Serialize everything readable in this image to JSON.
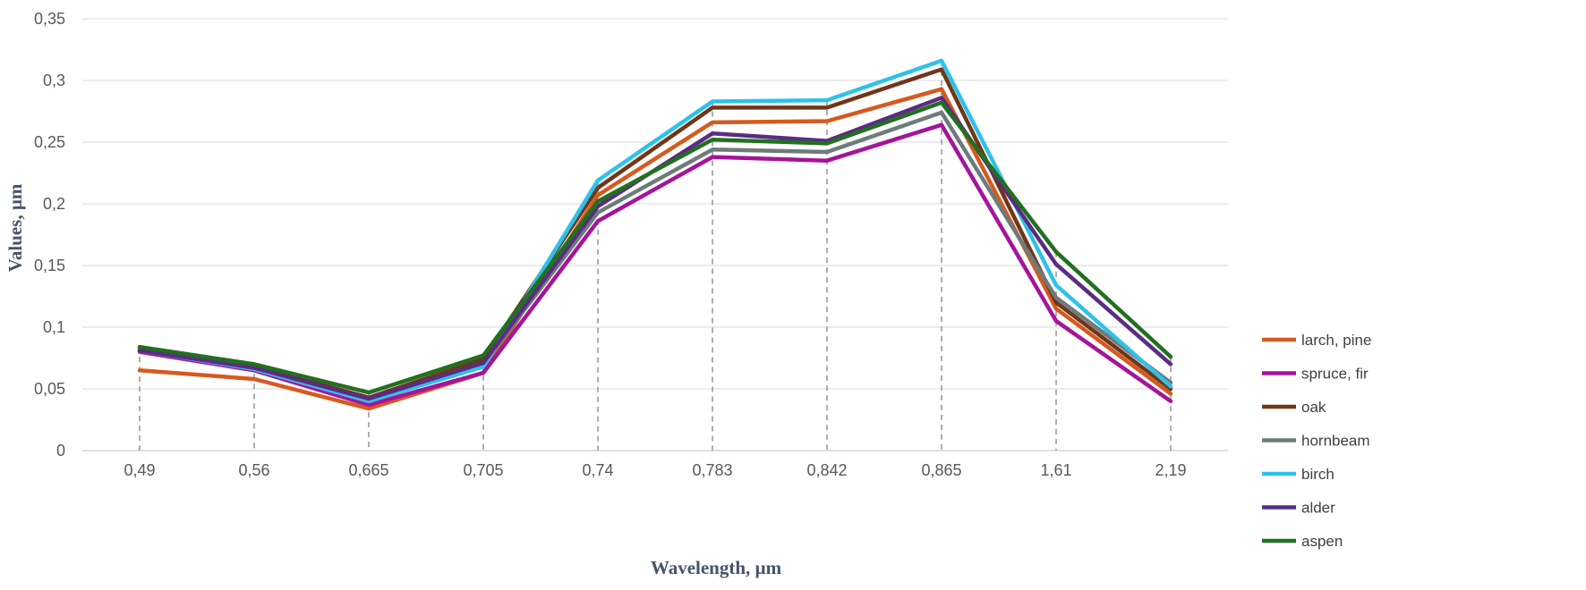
{
  "chart_data": {
    "type": "line",
    "title": "",
    "xlabel": "Wavelength,  µm",
    "ylabel": "Values,  µm",
    "categories": [
      "0,49",
      "0,56",
      "0,665",
      "0,705",
      "0,74",
      "0,783",
      "0,842",
      "0,865",
      "1,61",
      "2,19"
    ],
    "ylim": [
      0,
      0.35
    ],
    "yticks": [
      0,
      0.05,
      0.1,
      0.15,
      0.2,
      0.25,
      0.3,
      0.35
    ],
    "ytick_labels": [
      "0",
      "0,05",
      "0,1",
      "0,15",
      "0,2",
      "0,25",
      "0,3",
      "0,35"
    ],
    "grid": "horizontal",
    "drop_lines": true,
    "legend_position": "right",
    "series": [
      {
        "name": "larch, pine",
        "color": "#d55a1f",
        "values": [
          0.065,
          0.058,
          0.034,
          0.063,
          0.207,
          0.266,
          0.267,
          0.293,
          0.115,
          0.046
        ]
      },
      {
        "name": "spruce, fir",
        "color": "#a5149b",
        "values": [
          0.08,
          0.065,
          0.037,
          0.063,
          0.186,
          0.238,
          0.235,
          0.264,
          0.105,
          0.04
        ]
      },
      {
        "name": "oak",
        "color": "#70361a",
        "values": [
          0.082,
          0.068,
          0.043,
          0.074,
          0.213,
          0.278,
          0.278,
          0.309,
          0.12,
          0.05
        ]
      },
      {
        "name": "hornbeam",
        "color": "#6e7b7b",
        "values": [
          0.081,
          0.067,
          0.041,
          0.07,
          0.193,
          0.244,
          0.242,
          0.274,
          0.124,
          0.055
        ]
      },
      {
        "name": "birch",
        "color": "#2ec2e8",
        "values": [
          0.081,
          0.066,
          0.04,
          0.068,
          0.219,
          0.283,
          0.284,
          0.316,
          0.134,
          0.052
        ]
      },
      {
        "name": "alder",
        "color": "#5b2c82",
        "values": [
          0.081,
          0.067,
          0.042,
          0.071,
          0.198,
          0.257,
          0.251,
          0.286,
          0.151,
          0.07
        ]
      },
      {
        "name": "aspen",
        "color": "#21701f",
        "values": [
          0.084,
          0.07,
          0.047,
          0.077,
          0.202,
          0.252,
          0.249,
          0.282,
          0.161,
          0.076
        ]
      }
    ]
  }
}
